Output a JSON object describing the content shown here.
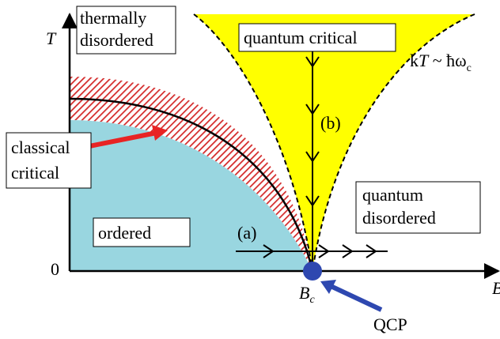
{
  "axes": {
    "y_label": "T",
    "x_label": "B",
    "origin": "0"
  },
  "regions": {
    "thermally_disordered": [
      "thermally",
      "disordered"
    ],
    "quantum_critical": "quantum critical",
    "quantum_disordered": [
      "quantum",
      "disordered"
    ],
    "classical_critical": [
      "classical",
      "critical"
    ],
    "ordered": "ordered"
  },
  "crossover": {
    "k": "k",
    "T": "T",
    "rest": " ~ ħω",
    "sub": "c"
  },
  "paths": {
    "a": "(a)",
    "b": "(b)"
  },
  "critical_point": {
    "main": "B",
    "sub": "c",
    "name": "QCP"
  }
}
